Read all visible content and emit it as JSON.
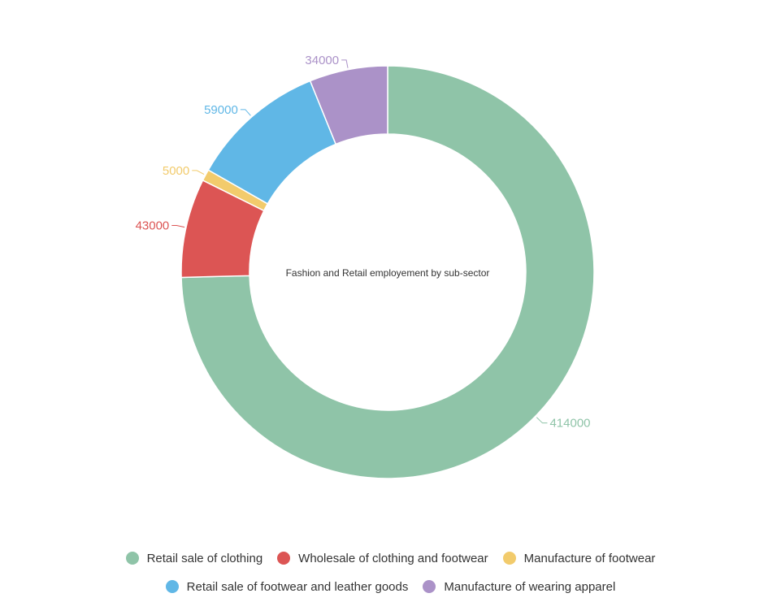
{
  "chart_data": {
    "type": "pie",
    "title": "Fashion and Retail employement by sub-sector",
    "categories": [
      "Retail sale of clothing",
      "Wholesale of clothing and footwear",
      "Manufacture of footwear",
      "Retail sale of footwear and leather goods",
      "Manufacture of wearing apparel"
    ],
    "values": [
      414000,
      43000,
      5000,
      59000,
      34000
    ],
    "data_labels": [
      "414000",
      "43000",
      "5000",
      "59000",
      "34000"
    ],
    "colors": [
      "#8fc4a8",
      "#dc5554",
      "#f2cb6c",
      "#60b7e6",
      "#ab92c8"
    ],
    "legend": {
      "placement": "bottom",
      "rows": [
        [
          "Retail sale of clothing",
          "Wholesale of clothing and footwear",
          "Manufacture of footwear"
        ],
        [
          "Retail sale of footwear and leather goods",
          "Manufacture of wearing apparel"
        ]
      ]
    }
  }
}
